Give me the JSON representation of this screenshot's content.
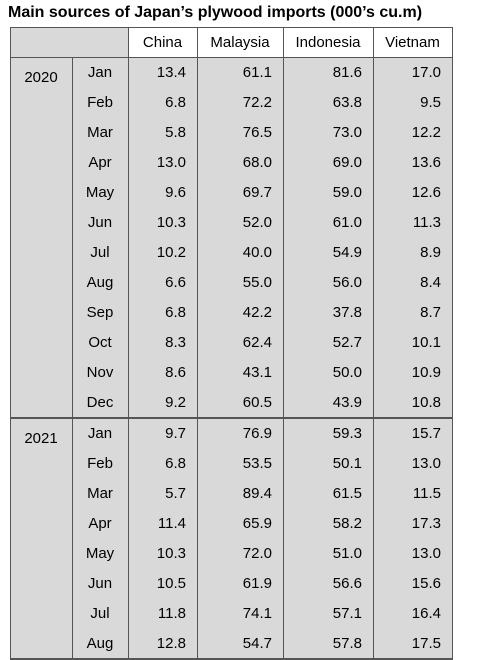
{
  "title": "Main sources of Japan’s plywood imports (000’s cu.m)",
  "table": {
    "columns": [
      "China",
      "Malaysia",
      "Indonesia",
      "Vietnam"
    ],
    "groups": [
      {
        "year": "2020",
        "rows": [
          {
            "month": "Jan",
            "values": [
              "13.4",
              "61.1",
              "81.6",
              "17.0"
            ]
          },
          {
            "month": "Feb",
            "values": [
              "6.8",
              "72.2",
              "63.8",
              "9.5"
            ]
          },
          {
            "month": "Mar",
            "values": [
              "5.8",
              "76.5",
              "73.0",
              "12.2"
            ]
          },
          {
            "month": "Apr",
            "values": [
              "13.0",
              "68.0",
              "69.0",
              "13.6"
            ]
          },
          {
            "month": "May",
            "values": [
              "9.6",
              "69.7",
              "59.0",
              "12.6"
            ]
          },
          {
            "month": "Jun",
            "values": [
              "10.3",
              "52.0",
              "61.0",
              "11.3"
            ]
          },
          {
            "month": "Jul",
            "values": [
              "10.2",
              "40.0",
              "54.9",
              "8.9"
            ]
          },
          {
            "month": "Aug",
            "values": [
              "6.6",
              "55.0",
              "56.0",
              "8.4"
            ]
          },
          {
            "month": "Sep",
            "values": [
              "6.8",
              "42.2",
              "37.8",
              "8.7"
            ]
          },
          {
            "month": "Oct",
            "values": [
              "8.3",
              "62.4",
              "52.7",
              "10.1"
            ]
          },
          {
            "month": "Nov",
            "values": [
              "8.6",
              "43.1",
              "50.0",
              "10.9"
            ]
          },
          {
            "month": "Dec",
            "values": [
              "9.2",
              "60.5",
              "43.9",
              "10.8"
            ]
          }
        ]
      },
      {
        "year": "2021",
        "rows": [
          {
            "month": "Jan",
            "values": [
              "9.7",
              "76.9",
              "59.3",
              "15.7"
            ]
          },
          {
            "month": "Feb",
            "values": [
              "6.8",
              "53.5",
              "50.1",
              "13.0"
            ]
          },
          {
            "month": "Mar",
            "values": [
              "5.7",
              "89.4",
              "61.5",
              "11.5"
            ]
          },
          {
            "month": "Apr",
            "values": [
              "11.4",
              "65.9",
              "58.2",
              "17.3"
            ]
          },
          {
            "month": "May",
            "values": [
              "10.3",
              "72.0",
              "51.0",
              "13.0"
            ]
          },
          {
            "month": "Jun",
            "values": [
              "10.5",
              "61.9",
              "56.6",
              "15.6"
            ]
          },
          {
            "month": "Jul",
            "values": [
              "11.8",
              "74.1",
              "57.1",
              "16.4"
            ]
          },
          {
            "month": "Aug",
            "values": [
              "12.8",
              "54.7",
              "57.8",
              "17.5"
            ]
          }
        ]
      }
    ]
  }
}
